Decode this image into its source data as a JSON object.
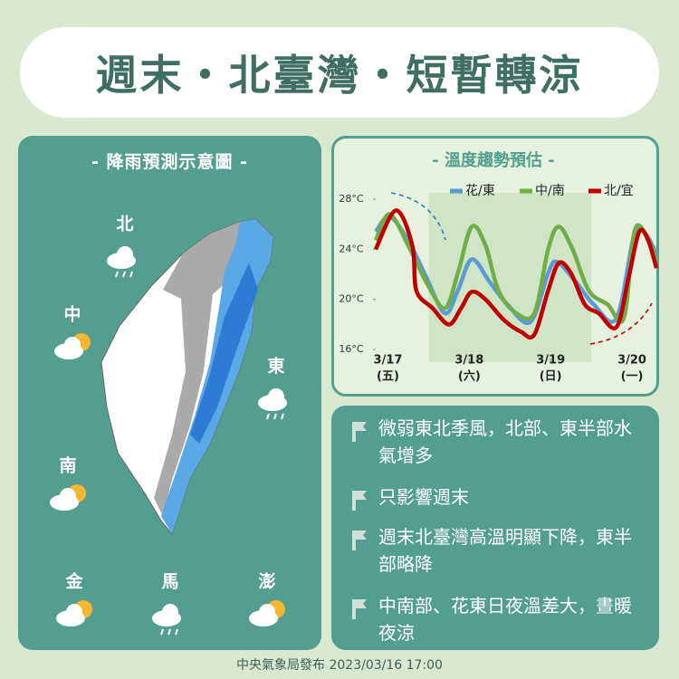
{
  "header": {
    "title": "週末・北臺灣・短暫轉涼"
  },
  "rain_map": {
    "title": "- 降雨預測示意圖 -",
    "regions": [
      "北",
      "中",
      "東",
      "南",
      "金",
      "馬",
      "澎"
    ]
  },
  "chart_data": {
    "type": "line",
    "title": "- 溫度趨勢預估 -",
    "xlim": [
      -0.15,
      3.3
    ],
    "xticks": [
      {
        "value": 0,
        "label": "3/17"
      },
      {
        "value": 1,
        "label": "3/18"
      },
      {
        "value": 2,
        "label": "3/19"
      },
      {
        "value": 3,
        "label": "3/20"
      }
    ],
    "xtick_weekdays": [
      "(五)",
      "(六)",
      "(日)",
      "(一)"
    ],
    "ylim": [
      15,
      28.5
    ],
    "yticks": [
      {
        "value": 16,
        "label": "16°C"
      },
      {
        "value": 20,
        "label": "20°C"
      },
      {
        "value": 24,
        "label": "24°C"
      },
      {
        "value": 28,
        "label": "28°C"
      }
    ],
    "shade": [
      0.5,
      2.5
    ],
    "legend": "top",
    "series": [
      {
        "name": "花/東",
        "color": "#5b9bd5",
        "x": [
          -0.15,
          0.02,
          0.25,
          0.47,
          0.7,
          0.86,
          1.03,
          1.25,
          1.47,
          1.75,
          1.97,
          2.08,
          2.31,
          2.53,
          2.81,
          3.03,
          3.17,
          3.3
        ],
        "values": [
          25.4,
          26.6,
          24.7,
          21.8,
          18.9,
          20.7,
          23.2,
          21.4,
          19.6,
          18.2,
          22.1,
          23,
          21.4,
          19.6,
          18.5,
          25.2,
          25.2,
          23.6
        ]
      },
      {
        "name": "中/南",
        "color": "#70ad47",
        "x": [
          -0.15,
          0.02,
          0.25,
          0.47,
          0.7,
          0.86,
          1.03,
          1.2,
          1.36,
          1.58,
          1.8,
          1.97,
          2.1,
          2.27,
          2.47,
          2.7,
          2.9,
          3.03,
          3.17,
          3.3
        ],
        "values": [
          24.7,
          26.8,
          24.3,
          21.4,
          19.3,
          22.1,
          25.8,
          24.3,
          20.7,
          18.9,
          18.9,
          24,
          25.8,
          24,
          20.7,
          19.6,
          18.5,
          25.4,
          25.2,
          23.2
        ]
      },
      {
        "name": "北/宜",
        "color": "#c00000",
        "x": [
          -0.15,
          0.1,
          0.3,
          0.35,
          0.55,
          0.75,
          0.9,
          1.03,
          1.2,
          1.42,
          1.64,
          1.8,
          1.97,
          2.1,
          2.25,
          2.42,
          2.59,
          2.81,
          2.96,
          3.09,
          3.2,
          3.3
        ],
        "values": [
          24,
          27.1,
          24.3,
          20.7,
          19.3,
          18,
          19.3,
          20.6,
          20,
          18.4,
          17.4,
          17.2,
          20.7,
          22.9,
          22.1,
          19.6,
          18.9,
          17.8,
          21.8,
          25.4,
          24.7,
          22.5
        ]
      }
    ]
  },
  "bullets": [
    "微弱東北季風，北部、東半部水氣增多",
    "只影響週末",
    "週末北臺灣高溫明顯下降，東半部略降",
    "中南部、花東日夜溫差大，晝暖夜涼"
  ],
  "footer": {
    "text": "中央氣象局發布 2023/03/16 17:00"
  }
}
